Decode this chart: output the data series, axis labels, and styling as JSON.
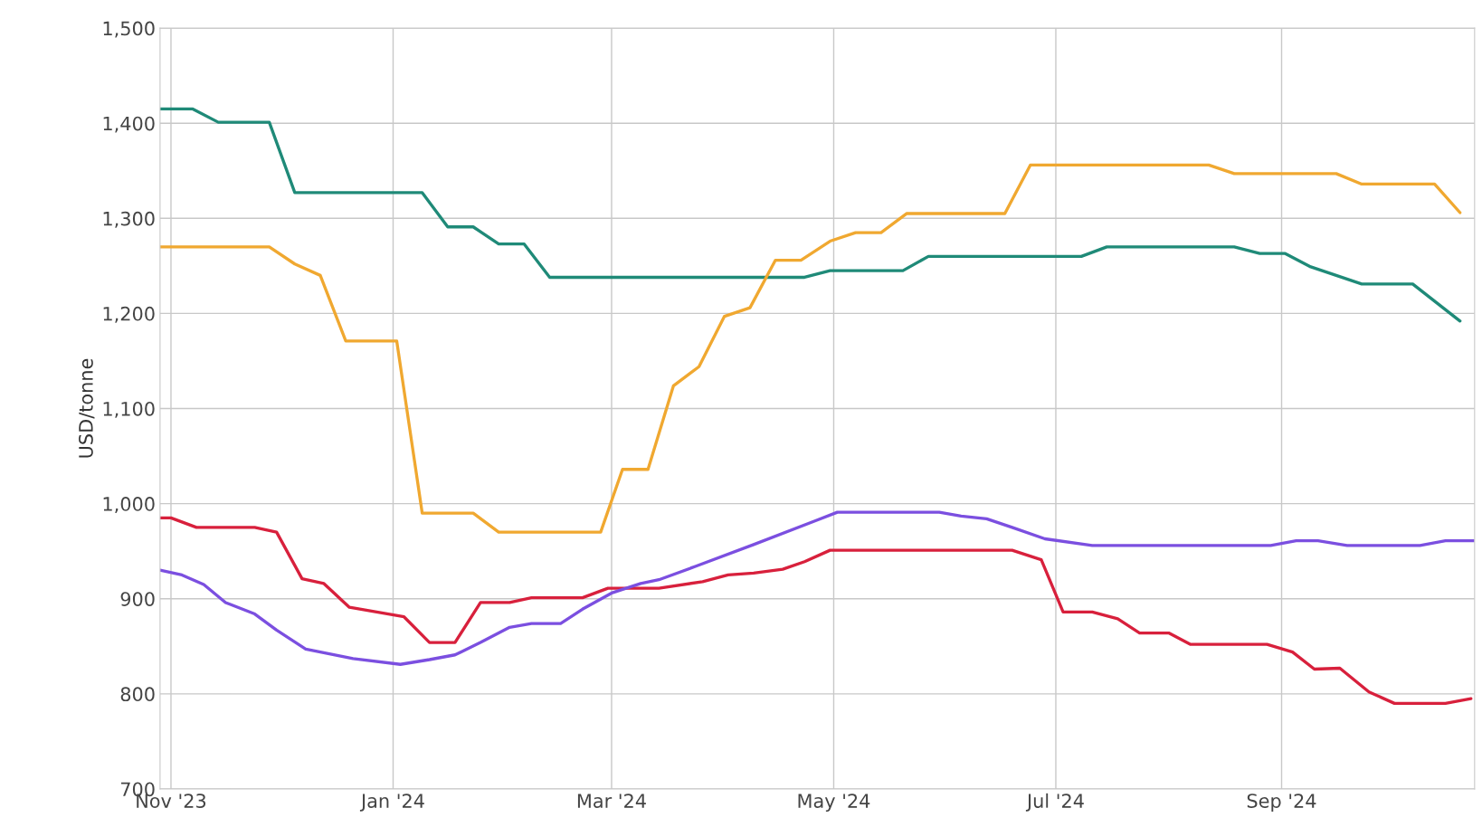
{
  "chart_data": {
    "type": "line",
    "ylabel": "USD/tonne",
    "grid": true,
    "legend": false,
    "marker": "none",
    "line_style": "solid",
    "xlim": [
      "2023-10-29",
      "2024-10-24"
    ],
    "xticks": [
      {
        "value": "2023-11-01",
        "label": "Nov '23"
      },
      {
        "value": "2024-01-01",
        "label": "Jan '24"
      },
      {
        "value": "2024-03-01",
        "label": "Mar '24"
      },
      {
        "value": "2024-05-01",
        "label": "May '24"
      },
      {
        "value": "2024-07-01",
        "label": "Jul '24"
      },
      {
        "value": "2024-09-01",
        "label": "Sep '24"
      }
    ],
    "ylim": [
      700,
      1500
    ],
    "yticks": [
      {
        "value": 700,
        "label": "700"
      },
      {
        "value": 800,
        "label": "800"
      },
      {
        "value": 900,
        "label": "900"
      },
      {
        "value": 1000,
        "label": "1,000"
      },
      {
        "value": 1100,
        "label": "1,100"
      },
      {
        "value": 1200,
        "label": "1,200"
      },
      {
        "value": 1300,
        "label": "1,300"
      },
      {
        "value": 1400,
        "label": "1,400"
      },
      {
        "value": 1500,
        "label": "1,500"
      }
    ],
    "series": [
      {
        "color": "#1f8a78",
        "x": [
          "2023-10-29",
          "2023-11-07",
          "2023-11-14",
          "2023-11-28",
          "2023-12-05",
          "2024-01-09",
          "2024-01-16",
          "2024-01-23",
          "2024-01-30",
          "2024-02-06",
          "2024-02-13",
          "2024-04-23",
          "2024-04-30",
          "2024-05-20",
          "2024-05-27",
          "2024-07-08",
          "2024-07-15",
          "2024-08-19",
          "2024-08-26",
          "2024-09-02",
          "2024-09-09",
          "2024-09-23",
          "2024-10-07",
          "2024-10-20"
        ],
        "values": [
          1415,
          1415,
          1401,
          1401,
          1327,
          1327,
          1291,
          1291,
          1273,
          1273,
          1238,
          1238,
          1245,
          1245,
          1260,
          1260,
          1270,
          1270,
          1263,
          1263,
          1249,
          1231,
          1231,
          1192
        ]
      },
      {
        "color": "#f0a830",
        "x": [
          "2023-10-29",
          "2023-11-28",
          "2023-12-05",
          "2023-12-12",
          "2023-12-19",
          "2024-01-02",
          "2024-01-09",
          "2024-01-23",
          "2024-01-30",
          "2024-02-27",
          "2024-03-04",
          "2024-03-11",
          "2024-03-18",
          "2024-03-25",
          "2024-04-01",
          "2024-04-08",
          "2024-04-15",
          "2024-04-22",
          "2024-04-30",
          "2024-05-07",
          "2024-05-14",
          "2024-05-21",
          "2024-06-17",
          "2024-06-24",
          "2024-08-12",
          "2024-08-19",
          "2024-09-16",
          "2024-09-23",
          "2024-10-13",
          "2024-10-20"
        ],
        "values": [
          1270,
          1270,
          1252,
          1240,
          1171,
          1171,
          990,
          990,
          970,
          970,
          1036,
          1036,
          1124,
          1144,
          1197,
          1206,
          1256,
          1256,
          1276,
          1285,
          1285,
          1305,
          1305,
          1356,
          1356,
          1347,
          1347,
          1336,
          1336,
          1306
        ]
      },
      {
        "color": "#d8203c",
        "x": [
          "2023-10-29",
          "2023-11-01",
          "2023-11-08",
          "2023-11-24",
          "2023-11-30",
          "2023-12-07",
          "2023-12-13",
          "2023-12-20",
          "2024-01-04",
          "2024-01-11",
          "2024-01-18",
          "2024-01-25",
          "2024-02-02",
          "2024-02-08",
          "2024-02-22",
          "2024-02-29",
          "2024-03-14",
          "2024-03-26",
          "2024-04-02",
          "2024-04-09",
          "2024-04-17",
          "2024-04-23",
          "2024-04-30",
          "2024-06-19",
          "2024-06-27",
          "2024-07-03",
          "2024-07-11",
          "2024-07-18",
          "2024-07-24",
          "2024-08-01",
          "2024-08-07",
          "2024-08-28",
          "2024-09-04",
          "2024-09-10",
          "2024-09-17",
          "2024-09-25",
          "2024-10-02",
          "2024-10-16",
          "2024-10-23"
        ],
        "values": [
          985,
          985,
          975,
          975,
          970,
          921,
          916,
          891,
          881,
          854,
          854,
          896,
          896,
          901,
          901,
          911,
          911,
          918,
          925,
          927,
          931,
          939,
          951,
          951,
          941,
          886,
          886,
          879,
          864,
          864,
          852,
          852,
          844,
          826,
          827,
          802,
          790,
          790,
          795
        ]
      },
      {
        "color": "#7b4fe0",
        "x": [
          "2023-10-29",
          "2023-11-04",
          "2023-11-10",
          "2023-11-16",
          "2023-11-24",
          "2023-11-30",
          "2023-12-08",
          "2023-12-21",
          "2024-01-03",
          "2024-01-11",
          "2024-01-18",
          "2024-01-25",
          "2024-02-02",
          "2024-02-08",
          "2024-02-16",
          "2024-02-22",
          "2024-03-01",
          "2024-03-09",
          "2024-03-14",
          "2024-03-24",
          "2024-04-09",
          "2024-04-26",
          "2024-05-02",
          "2024-05-30",
          "2024-06-05",
          "2024-06-12",
          "2024-06-19",
          "2024-06-28",
          "2024-07-11",
          "2024-08-29",
          "2024-09-05",
          "2024-09-11",
          "2024-09-19",
          "2024-10-09",
          "2024-10-16",
          "2024-10-24"
        ],
        "values": [
          930,
          925,
          915,
          896,
          884,
          867,
          847,
          837,
          831,
          836,
          841,
          854,
          870,
          874,
          874,
          889,
          906,
          916,
          920,
          934,
          957,
          982,
          991,
          991,
          987,
          984,
          975,
          963,
          956,
          956,
          961,
          961,
          956,
          956,
          961,
          961
        ]
      }
    ]
  }
}
